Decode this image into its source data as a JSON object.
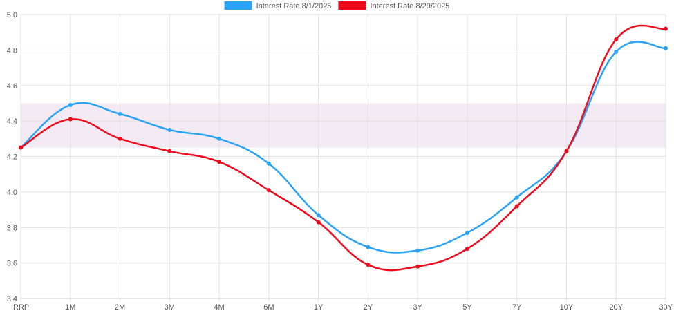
{
  "chart_data": {
    "type": "line",
    "title": "",
    "xlabel": "",
    "ylabel": "",
    "categories": [
      "RRP",
      "1M",
      "2M",
      "3M",
      "4M",
      "6M",
      "1Y",
      "2Y",
      "3Y",
      "5Y",
      "7Y",
      "10Y",
      "20Y",
      "30Y"
    ],
    "yticks": [
      "3.4",
      "3.6",
      "3.8",
      "4.0",
      "4.2",
      "4.4",
      "4.6",
      "4.8",
      "5.0"
    ],
    "ylim": [
      3.4,
      5.0
    ],
    "grid": true,
    "legend_position": "top-center",
    "band": {
      "from": 4.25,
      "to": 4.5,
      "color": "#f3eaf3"
    },
    "series": [
      {
        "name": "Interest Rate 8/1/2025",
        "color": "#2aa2f5",
        "values": [
          4.25,
          4.49,
          4.44,
          4.35,
          4.3,
          4.16,
          3.87,
          3.69,
          3.67,
          3.77,
          3.97,
          4.23,
          4.79,
          4.81
        ]
      },
      {
        "name": "Interest Rate 8/29/2025",
        "color": "#ef0a1e",
        "values": [
          4.25,
          4.41,
          4.3,
          4.23,
          4.17,
          4.01,
          3.83,
          3.59,
          3.58,
          3.68,
          3.92,
          4.23,
          4.86,
          4.92
        ]
      }
    ]
  }
}
